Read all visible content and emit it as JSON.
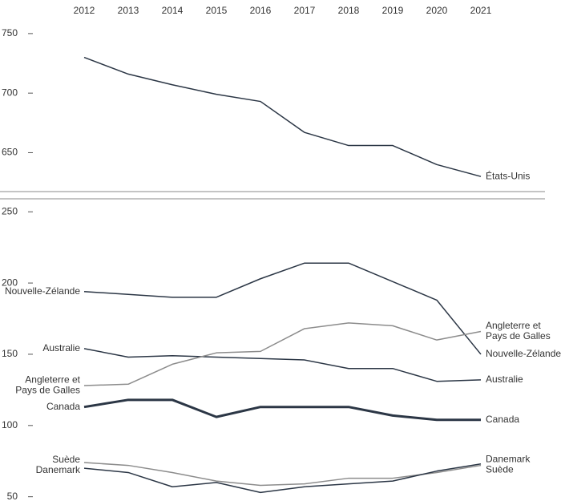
{
  "chart_data": {
    "type": "line",
    "categories": [
      "2012",
      "2013",
      "2014",
      "2015",
      "2016",
      "2017",
      "2018",
      "2019",
      "2020",
      "2021"
    ],
    "panels": [
      {
        "ylim": [
          618,
          758
        ],
        "yticks": [
          650,
          700,
          750
        ],
        "series": [
          {
            "name": "États-Unis",
            "color": "#2b3645",
            "values": [
              730,
              716,
              707,
              699,
              693,
              667,
              656,
              656,
              640,
              630
            ]
          }
        ]
      },
      {
        "ylim": [
          47,
          258
        ],
        "yticks": [
          50,
          100,
          150,
          200,
          250
        ],
        "series": [
          {
            "name": "Nouvelle-Zélande",
            "color": "#2b3645",
            "values": [
              194,
              192,
              190,
              190,
              203,
              214,
              214,
              201,
              188,
              150
            ]
          },
          {
            "name": "Australie",
            "color": "#2b3645",
            "values": [
              154,
              148,
              149,
              148,
              147,
              146,
              140,
              140,
              131,
              132
            ]
          },
          {
            "name": "Angleterre et Pays de Galles",
            "color": "#8c8c8c",
            "values": [
              128,
              129,
              143,
              151,
              152,
              168,
              172,
              170,
              160,
              166
            ]
          },
          {
            "name": "Canada",
            "color": "#2b3645",
            "width": 3,
            "values": [
              113,
              118,
              118,
              106,
              113,
              113,
              113,
              107,
              104,
              104
            ]
          },
          {
            "name": "Suède",
            "color": "#8c8c8c",
            "values": [
              74,
              72,
              67,
              61,
              58,
              59,
              63,
              63,
              67,
              72
            ]
          },
          {
            "name": "Danemark",
            "color": "#2b3645",
            "values": [
              70,
              67,
              57,
              60,
              53,
              57,
              59,
              61,
              68,
              73
            ]
          }
        ]
      }
    ]
  }
}
